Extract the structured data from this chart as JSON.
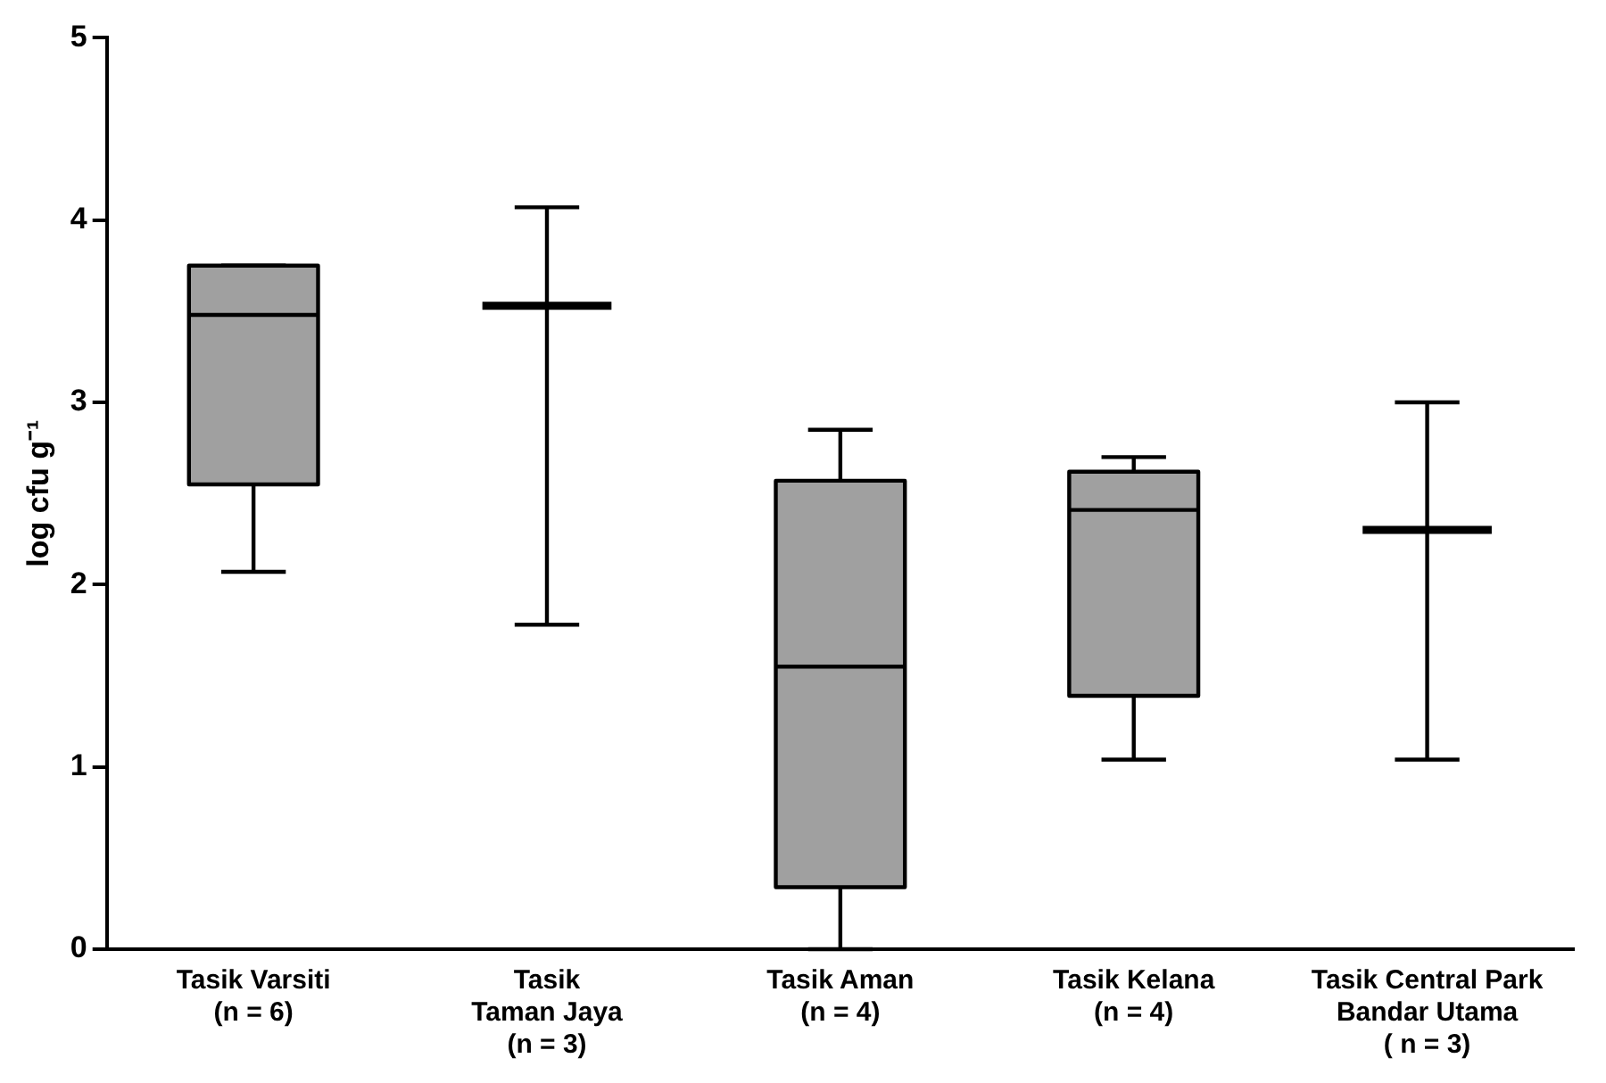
{
  "chart_data": {
    "type": "box",
    "ylabel": "log cfu g⁻¹",
    "categories": [
      "Tasik Varsiti\n(n = 6)",
      "Tasik\nTaman Jaya\n(n = 3)",
      "Tasik Aman\n(n = 4)",
      "Tasik Kelana\n(n = 4)",
      "Tasik Central Park\nBandar Utama\n( n = 3)"
    ],
    "boxes": [
      {
        "low": 2.07,
        "q1": 2.55,
        "median": 3.48,
        "q3": 3.75,
        "high": 3.75
      },
      {
        "low": 1.78,
        "q1": 3.53,
        "median": 3.53,
        "q3": 3.53,
        "high": 4.07
      },
      {
        "low": 0,
        "q1": 0.34,
        "median": 1.55,
        "q3": 2.57,
        "high": 2.85
      },
      {
        "low": 1.04,
        "q1": 1.39,
        "median": 2.41,
        "q3": 2.62,
        "high": 2.7
      },
      {
        "low": 1.04,
        "q1": 2.3,
        "median": 2.3,
        "q3": 2.3,
        "high": 3.0
      }
    ],
    "colors": [
      "#a0a0a0",
      "#000000",
      "#a0a0a0",
      "#a0a0a0",
      "#000000"
    ],
    "ylim": [
      0,
      5
    ],
    "yticks": [
      0,
      1,
      2,
      3,
      4,
      5
    ],
    "grid": false,
    "legend": false
  }
}
